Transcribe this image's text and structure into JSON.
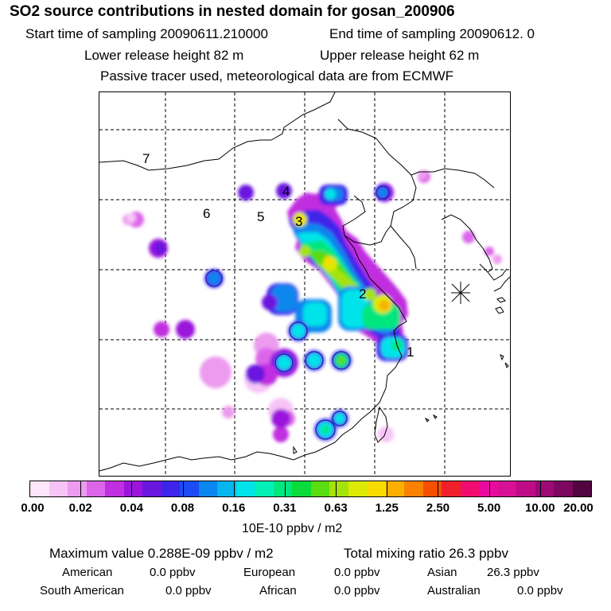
{
  "header": {
    "title": "SO2 source contributions in nested domain for gosan_200906",
    "start_label": "Start time of sampling 20090611.210000",
    "end_label": "End time of sampling 20090612.     0",
    "lower_label": "Lower release height   82 m",
    "upper_label": "Upper release height   62 m",
    "note": "Passive tracer used, meteorological data are from ECMWF"
  },
  "map": {
    "region_labels": [
      "1",
      "2",
      "3",
      "4",
      "5",
      "6",
      "7"
    ],
    "receptor_marker": "asterisk-icon"
  },
  "colorbar": {
    "colors": [
      "#fde6fb",
      "#f7c4f5",
      "#ec9bef",
      "#dc66ea",
      "#c02fe0",
      "#9b16dc",
      "#6a17e0",
      "#3d25ea",
      "#1c4cf2",
      "#0a86ee",
      "#06b6ee",
      "#00e3ea",
      "#00f0b8",
      "#00e67e",
      "#0adc3c",
      "#5adc10",
      "#a6e30a",
      "#dcea05",
      "#f8dc00",
      "#fbb000",
      "#fa8200",
      "#f45000",
      "#f0202a",
      "#f00c70",
      "#ea0aa0",
      "#d81096",
      "#bd0c86",
      "#9c0a76",
      "#7c0860",
      "#520440"
    ],
    "tick_labels": [
      "0.00",
      "0.02",
      "0.04",
      "0.08",
      "0.16",
      "0.31",
      "0.63",
      "1.25",
      "2.50",
      "5.00",
      "10.00",
      "20.00"
    ],
    "unit": "10E-10 ppbv / m2"
  },
  "summary": {
    "max_value": "Maximum value  0.288E-09 ppbv / m2",
    "total_mixing": "Total mixing ratio       26.3 ppbv",
    "regions": [
      {
        "name": "American",
        "value": "0.0 ppbv"
      },
      {
        "name": "European",
        "value": "0.0 ppbv"
      },
      {
        "name": "Asian",
        "value": "26.3 ppbv"
      },
      {
        "name": "South American",
        "value": "0.0 ppbv"
      },
      {
        "name": "African",
        "value": "0.0 ppbv"
      },
      {
        "name": "Australian",
        "value": "0.0 ppbv"
      }
    ]
  }
}
